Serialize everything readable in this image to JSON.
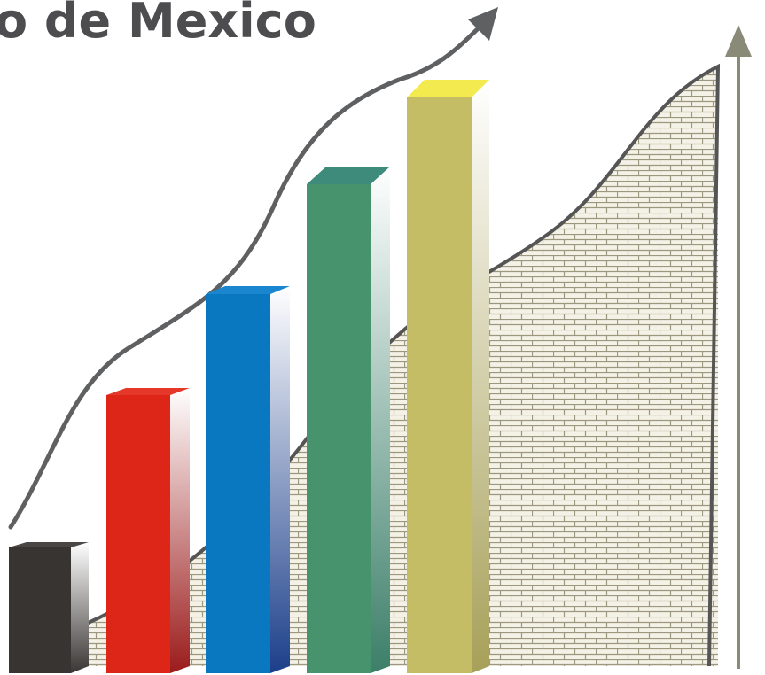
{
  "title": "o de Mexico"
}
